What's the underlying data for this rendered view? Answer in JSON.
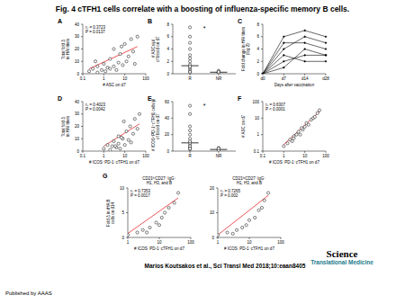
{
  "title": "Fig. 4 cTFH1 cells correlate with a boosting of influenza-specific memory B cells.",
  "citation": "Marios Koutsakos et al., Sci Transl Med 2018;10:eaan8405",
  "publisher": "Published by AAAS",
  "logo": [
    "Science",
    "Translational",
    "Medicine"
  ],
  "chart_data": [
    {
      "type": "scatter",
      "title": "A",
      "xlabel": "# ASC on d7",
      "ylabel": [
        "Total fold Δ",
        "in HAI titers"
      ],
      "log": "x",
      "xlim": [
        0.1,
        100
      ],
      "xticks": [
        0.1,
        1,
        10,
        100
      ],
      "ylim": [
        0,
        40
      ],
      "yticks": [
        0,
        10,
        20,
        30,
        40
      ],
      "x": [
        0.2,
        0.3,
        0.5,
        0.5,
        0.8,
        1,
        1.2,
        1.5,
        2,
        2,
        3,
        3,
        4,
        5,
        6,
        8,
        10,
        12,
        15,
        20,
        25,
        30,
        40,
        0.4,
        7
      ],
      "values": [
        2,
        4,
        1,
        6,
        3,
        8,
        2,
        5,
        4,
        12,
        6,
        20,
        3,
        9,
        16,
        7,
        24,
        10,
        14,
        28,
        18,
        8,
        30,
        10,
        22
      ],
      "color": "#000000",
      "marker": "circle-open",
      "fit": {
        "x": [
          0.2,
          40
        ],
        "values": [
          4,
          22
        ],
        "color": "#e8282b"
      },
      "annotations": [
        "rₛ = 0.3723",
        "P = 0.0137"
      ]
    },
    {
      "type": "strip",
      "title": "B",
      "ylabel": [
        "# ASCs/µl",
        "of blood on d7"
      ],
      "categories": [
        "R",
        "NR"
      ],
      "ylim": [
        0,
        8
      ],
      "yticks": [
        0,
        2,
        4,
        6,
        8
      ],
      "values": [
        [
          0.2,
          0.5,
          0.8,
          1,
          1.5,
          2,
          2.5,
          3,
          4,
          5,
          6,
          7.5,
          0.3,
          1.2
        ],
        [
          0.1,
          0.2,
          0.3,
          0.2,
          0.4,
          0.5,
          0.1,
          0.3
        ]
      ],
      "medians": [
        1.3,
        0.25
      ],
      "color": "#000000",
      "marker": "circle-open",
      "annotations": [
        "*"
      ]
    },
    {
      "type": "line",
      "title": "C",
      "xlabel": "Days after vaccination",
      "ylabel": [
        "Fold change in HAI titers",
        "(log 2)"
      ],
      "categories": [
        "d0",
        "d7",
        "d14",
        "d28"
      ],
      "ylim": [
        0,
        8
      ],
      "yticks": [
        0,
        2,
        4,
        6,
        8
      ],
      "color": "#000000",
      "series": [
        {
          "values": [
            0,
            4,
            6,
            5
          ]
        },
        {
          "values": [
            0,
            2,
            3,
            3
          ]
        },
        {
          "values": [
            0,
            6,
            7,
            6
          ]
        },
        {
          "values": [
            0,
            3,
            2,
            2
          ]
        },
        {
          "values": [
            0,
            1,
            4,
            3
          ]
        },
        {
          "values": [
            0,
            5,
            5,
            4
          ]
        }
      ]
    },
    {
      "type": "scatter",
      "title": "D",
      "xlabel": "# ICOS⁺PD-1⁺cTFH1 on d7",
      "ylabel": [
        "Total fold Δ",
        "in HAI titers"
      ],
      "log": "x",
      "xlim": [
        0.1,
        100
      ],
      "xticks": [
        0.1,
        1,
        10,
        100
      ],
      "ylim": [
        0,
        40
      ],
      "yticks": [
        0,
        10,
        20,
        30,
        40
      ],
      "x": [
        1,
        1.5,
        2,
        2.5,
        3,
        4,
        5,
        5,
        6,
        8,
        10,
        12,
        15,
        18,
        20,
        25,
        30,
        40,
        50,
        3.5,
        7,
        9
      ],
      "values": [
        2,
        5,
        1,
        4,
        8,
        3,
        6,
        12,
        2,
        10,
        5,
        16,
        9,
        20,
        7,
        14,
        26,
        18,
        30,
        4,
        11,
        24
      ],
      "color": "#000000",
      "marker": "circle-open",
      "fit": {
        "x": [
          1,
          50
        ],
        "values": [
          4,
          22
        ],
        "color": "#e8282b"
      },
      "annotations": [
        "rₛ = 0.4023",
        "P = 0.0042"
      ]
    },
    {
      "type": "strip",
      "title": "E",
      "ylabel": [
        "# ICOS⁺PD-1⁺cTFH1 cells/µl",
        "of blood on d7"
      ],
      "categories": [
        "R",
        "NR"
      ],
      "ylim": [
        0,
        60
      ],
      "yticks": [
        0,
        20,
        40,
        60
      ],
      "values": [
        [
          2,
          4,
          5,
          8,
          10,
          12,
          15,
          20,
          25,
          30,
          45,
          55,
          6,
          3
        ],
        [
          1,
          2,
          3,
          2,
          4,
          1,
          3
        ]
      ],
      "medians": [
        10,
        2
      ],
      "color": "#000000",
      "marker": "circle-open",
      "annotations": [
        "*"
      ]
    },
    {
      "type": "scatter",
      "title": "F",
      "xlabel": "# ICOS⁺PD-1⁺cTFH1 on d7",
      "ylabel": [
        "# ASC on d7"
      ],
      "log": true,
      "xlim": [
        0.1,
        100
      ],
      "xticks": [
        0.1,
        1,
        10,
        100
      ],
      "ylim": [
        0.1,
        100
      ],
      "yticks": [
        0.1,
        1,
        10,
        100
      ],
      "x": [
        1,
        1.5,
        2,
        2.5,
        3,
        4,
        5,
        6,
        8,
        10,
        12,
        15,
        20,
        25,
        30,
        40,
        50,
        3,
        7
      ],
      "values": [
        0.2,
        0.3,
        0.5,
        0.4,
        0.8,
        1,
        1.5,
        1,
        2,
        3,
        5,
        4,
        8,
        10,
        12,
        20,
        30,
        0.6,
        2.5
      ],
      "color": "#000000",
      "marker": "circle-open",
      "fit": {
        "x": [
          1,
          50
        ],
        "values": [
          0.25,
          25
        ],
        "color": "#e8282b"
      },
      "annotations": [
        "rₛ = 0.6307",
        "P < 0.0001"
      ]
    },
    {
      "type": "scatter",
      "title": "G",
      "subtitle": [
        "CD21ʰⁱCD27⁺IgG⁺",
        "H1, H3, and B"
      ],
      "xlabel": "# ICOS⁺PD-1⁺cTFH1 on d7",
      "ylabel": [
        "Fold Δ in rHA B",
        "cells on d14"
      ],
      "log": "x",
      "xlim": [
        1,
        100
      ],
      "xticks": [
        1,
        10,
        100
      ],
      "ylim": [
        0,
        10
      ],
      "yticks": [
        0,
        5,
        10
      ],
      "x": [
        1,
        2,
        3,
        4,
        5,
        8,
        10,
        12,
        15,
        20,
        30,
        40
      ],
      "values": [
        0.5,
        1,
        1.5,
        1,
        2,
        3,
        2.5,
        4,
        5,
        6,
        7,
        9
      ],
      "color": "#000000",
      "marker": "circle-open",
      "fit": {
        "x": [
          1,
          40
        ],
        "values": [
          0.8,
          8
        ],
        "color": "#e8282b"
      },
      "annotations": [
        "rₛ = 0.7353",
        "P = 0.0017"
      ]
    },
    {
      "type": "scatter",
      "subtitle": [
        "CD21ˡᵒCD27⁺IgG⁺",
        "H1, H3, and B"
      ],
      "xlabel": "# ICOS⁺PD-1⁺cTFH1 on d7",
      "log": "x",
      "xlim": [
        1,
        100
      ],
      "xticks": [
        1,
        10,
        100
      ],
      "ylim": [
        0,
        20
      ],
      "yticks": [
        0,
        10,
        20
      ],
      "x": [
        1,
        2,
        3,
        4,
        6,
        8,
        10,
        15,
        20,
        25,
        30,
        40
      ],
      "values": [
        1,
        2,
        1.5,
        3,
        4,
        5,
        7,
        8,
        11,
        12,
        15,
        18
      ],
      "color": "#000000",
      "marker": "circle-open",
      "fit": {
        "x": [
          1,
          40
        ],
        "values": [
          1,
          17
        ],
        "color": "#e8282b"
      },
      "annotations": [
        "rₛ = 0.7265",
        "P = 0.002"
      ]
    }
  ]
}
